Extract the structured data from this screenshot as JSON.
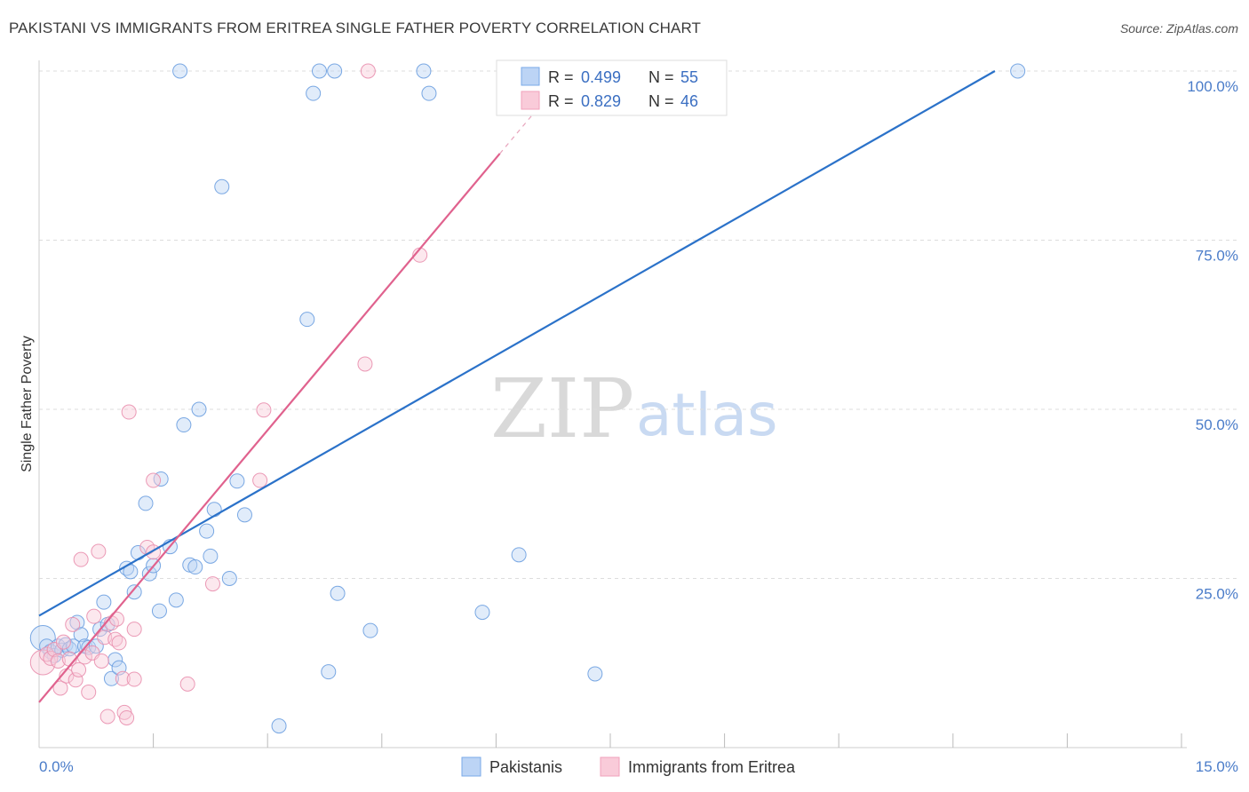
{
  "title": "PAKISTANI VS IMMIGRANTS FROM ERITREA SINGLE FATHER POVERTY CORRELATION CHART",
  "source": "Source: ZipAtlas.com",
  "watermark": {
    "zip": "ZIP",
    "atlas": "atlas"
  },
  "colors": {
    "blue": "#7aaae8",
    "blue_line": "#2b72c9",
    "pink": "#f1a1bb",
    "pink_line": "#e0628e",
    "grid": "#dddddd",
    "tick_text": "#4a7cc9"
  },
  "chart_data": {
    "type": "scatter",
    "title": "PAKISTANI VS IMMIGRANTS FROM ERITREA SINGLE FATHER POVERTY CORRELATION CHART",
    "xlabel": "",
    "ylabel": "Single Father Poverty",
    "xlim": [
      0,
      15
    ],
    "ylim": [
      0,
      100
    ],
    "x_tick_labels": [
      "0.0%",
      "15.0%"
    ],
    "y_ticks": [
      25,
      50,
      75,
      100
    ],
    "y_tick_labels": [
      "25.0%",
      "50.0%",
      "75.0%",
      "100.0%"
    ],
    "legend": [
      {
        "name": "Pakistanis",
        "R": "0.499",
        "N": "55"
      },
      {
        "name": "Immigrants from Eritrea",
        "R": "0.829",
        "N": "46"
      }
    ],
    "series": [
      {
        "name": "Pakistanis",
        "color": "#7aaae8",
        "points": [
          [
            0.05,
            16.2
          ],
          [
            0.1,
            15.0
          ],
          [
            0.15,
            14.2
          ],
          [
            0.2,
            13.6
          ],
          [
            0.25,
            15.0
          ],
          [
            0.3,
            14.4
          ],
          [
            0.35,
            15.2
          ],
          [
            0.4,
            14.6
          ],
          [
            0.45,
            15.0
          ],
          [
            0.5,
            18.5
          ],
          [
            0.55,
            16.7
          ],
          [
            0.6,
            15.0
          ],
          [
            0.65,
            14.8
          ],
          [
            0.75,
            15.0
          ],
          [
            0.8,
            17.5
          ],
          [
            0.85,
            21.5
          ],
          [
            0.9,
            18.2
          ],
          [
            0.95,
            10.2
          ],
          [
            1.0,
            13.0
          ],
          [
            1.05,
            11.8
          ],
          [
            1.15,
            26.5
          ],
          [
            1.2,
            26.0
          ],
          [
            1.25,
            23.0
          ],
          [
            1.3,
            28.8
          ],
          [
            1.4,
            36.1
          ],
          [
            1.45,
            25.7
          ],
          [
            1.5,
            26.9
          ],
          [
            1.58,
            20.2
          ],
          [
            1.6,
            39.7
          ],
          [
            1.72,
            29.7
          ],
          [
            1.8,
            21.8
          ],
          [
            1.85,
            100.0
          ],
          [
            1.9,
            47.7
          ],
          [
            1.98,
            27.0
          ],
          [
            2.05,
            26.7
          ],
          [
            2.1,
            50.0
          ],
          [
            2.2,
            32.0
          ],
          [
            2.25,
            28.3
          ],
          [
            2.3,
            35.2
          ],
          [
            2.4,
            82.9
          ],
          [
            2.5,
            25.0
          ],
          [
            2.6,
            39.4
          ],
          [
            2.7,
            34.4
          ],
          [
            3.15,
            3.2
          ],
          [
            3.52,
            63.3
          ],
          [
            3.6,
            96.7
          ],
          [
            3.68,
            100.0
          ],
          [
            3.88,
            100.0
          ],
          [
            3.92,
            22.8
          ],
          [
            3.8,
            11.2
          ],
          [
            4.35,
            17.3
          ],
          [
            5.05,
            100.0
          ],
          [
            5.12,
            96.7
          ],
          [
            5.82,
            20.0
          ],
          [
            6.3,
            28.5
          ],
          [
            7.3,
            10.9
          ],
          [
            12.85,
            100.0
          ]
        ]
      },
      {
        "name": "Immigrants from Eritrea",
        "color": "#f1a1bb",
        "points": [
          [
            0.05,
            12.6
          ],
          [
            0.1,
            13.8
          ],
          [
            0.15,
            13.2
          ],
          [
            0.2,
            14.5
          ],
          [
            0.25,
            12.8
          ],
          [
            0.28,
            8.8
          ],
          [
            0.32,
            15.6
          ],
          [
            0.36,
            10.6
          ],
          [
            0.4,
            13.1
          ],
          [
            0.44,
            18.2
          ],
          [
            0.48,
            10.0
          ],
          [
            0.52,
            11.5
          ],
          [
            0.55,
            27.8
          ],
          [
            0.6,
            13.4
          ],
          [
            0.65,
            8.2
          ],
          [
            0.7,
            14.0
          ],
          [
            0.72,
            19.4
          ],
          [
            0.78,
            29.0
          ],
          [
            0.82,
            12.8
          ],
          [
            0.86,
            16.3
          ],
          [
            0.9,
            4.6
          ],
          [
            0.95,
            18.4
          ],
          [
            1.0,
            16.0
          ],
          [
            1.02,
            19.0
          ],
          [
            1.05,
            15.5
          ],
          [
            1.1,
            10.2
          ],
          [
            1.12,
            5.2
          ],
          [
            1.15,
            4.4
          ],
          [
            1.18,
            49.6
          ],
          [
            1.25,
            17.5
          ],
          [
            1.25,
            10.1
          ],
          [
            1.42,
            29.6
          ],
          [
            1.5,
            39.5
          ],
          [
            1.5,
            28.9
          ],
          [
            1.95,
            9.4
          ],
          [
            2.28,
            24.2
          ],
          [
            2.9,
            39.5
          ],
          [
            2.95,
            49.9
          ],
          [
            4.28,
            56.7
          ],
          [
            4.32,
            100.0
          ],
          [
            5.0,
            72.8
          ]
        ]
      }
    ],
    "trend_lines": [
      {
        "name": "Pakistanis",
        "from": [
          0,
          19.5
        ],
        "to": [
          12.55,
          100.0
        ],
        "color": "#2b72c9"
      },
      {
        "name": "Immigrants from Eritrea",
        "from": [
          0,
          6.7
        ],
        "to": [
          6.05,
          87.8
        ],
        "color": "#e0628e"
      }
    ]
  }
}
